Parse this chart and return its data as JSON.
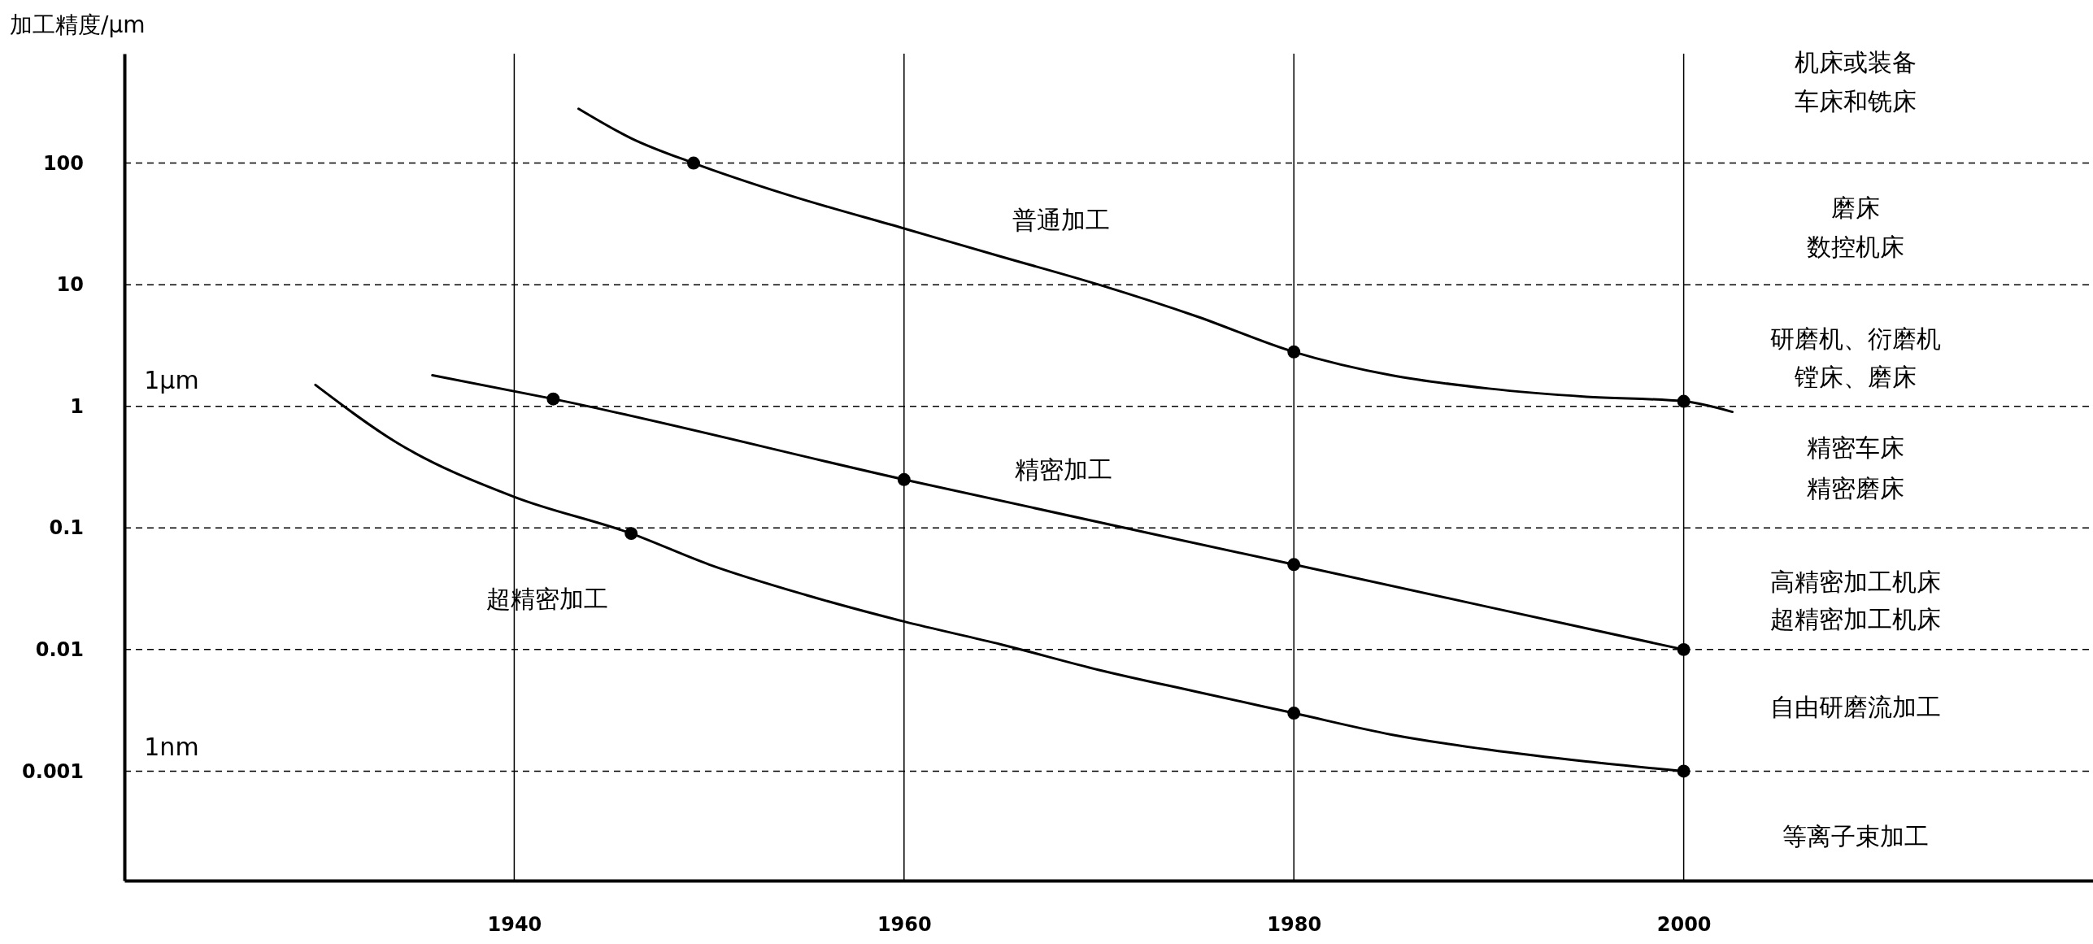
{
  "chart_data": {
    "type": "line",
    "ylabel": "加工精度/μm",
    "log": "y",
    "grid": true,
    "marker": "none",
    "line_style": "solid",
    "xlim": [
      1920,
      2021
    ],
    "xticks": [
      1940,
      1960,
      1980,
      2000
    ],
    "ylim": [
      0.000126,
      794
    ],
    "yticks": [
      100,
      10,
      1,
      0.1,
      0.01,
      0.001
    ],
    "series": [
      {
        "type": "line",
        "color": "#000000",
        "x": [
          1943.3,
          1946,
          1949.2,
          1954,
          1960,
          1965,
          1970,
          1975,
          1980,
          1985,
          1990,
          1995,
          2000,
          2002.5
        ],
        "values": [
          280,
          160,
          100,
          55,
          29,
          17,
          10,
          5.5,
          2.8,
          1.8,
          1.4,
          1.2,
          1.1,
          0.9
        ]
      },
      {
        "type": "line",
        "color": "#000000",
        "x": [
          1935.8,
          1942,
          1960,
          1980,
          2000
        ],
        "values": [
          1.8,
          1.15,
          0.25,
          0.05,
          0.01
        ]
      },
      {
        "type": "line",
        "color": "#000000",
        "x": [
          1929.8,
          1934,
          1940,
          1946,
          1950,
          1955,
          1960,
          1965,
          1970,
          1975,
          1980,
          1985,
          1990,
          1995,
          2000
        ],
        "values": [
          1.5,
          0.5,
          0.18,
          0.09,
          0.05,
          0.028,
          0.017,
          0.011,
          0.0068,
          0.0045,
          0.003,
          0.002,
          0.0015,
          0.0012,
          0.001
        ]
      },
      {
        "type": "scatter",
        "color": "#000000",
        "marker": "circle",
        "x": [
          1949.2,
          1980,
          2000,
          1942,
          1960,
          1980,
          2000,
          1946,
          1980,
          2000
        ],
        "values": [
          100,
          2.8,
          1.1,
          1.15,
          0.25,
          0.05,
          0.01,
          0.09,
          0.003,
          0.001
        ]
      }
    ],
    "annotations": [
      "普通加工",
      "精密加工",
      "超精密加工",
      "1μm",
      "1nm",
      "机床或装备",
      "车床和铣床",
      "磨床",
      "数控机床",
      "研磨机、衍磨机",
      "镗床、磨床",
      "精密车床",
      "精密磨床",
      "高精密加工机床",
      "超精密加工机床",
      "自由研磨流加工",
      "等离子束加工"
    ]
  }
}
